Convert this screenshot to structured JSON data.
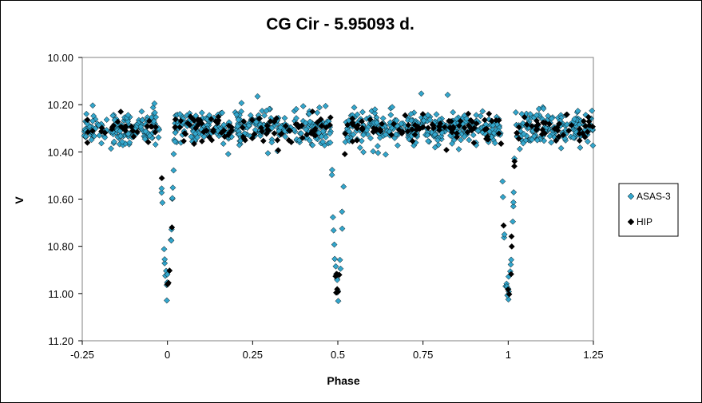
{
  "chart_data": {
    "type": "scatter",
    "title": "CG Cir - 5.95093 d.",
    "xlabel": "Phase",
    "ylabel": "V",
    "xlim": [
      -0.25,
      1.25
    ],
    "ylim": [
      10.0,
      11.2
    ],
    "y_inverted": true,
    "x_ticks": [
      -0.25,
      0,
      0.25,
      0.5,
      0.75,
      1,
      1.25
    ],
    "x_tick_labels": [
      "-0.25",
      "0",
      "0.25",
      "0.5",
      "0.75",
      "1",
      "1.25"
    ],
    "y_ticks": [
      10.0,
      10.2,
      10.4,
      10.6,
      10.8,
      11.0,
      11.2
    ],
    "y_tick_labels": [
      "10.00",
      "10.20",
      "10.40",
      "10.60",
      "10.80",
      "11.00",
      "11.20"
    ],
    "grid": false,
    "legend_position": "right",
    "model": {
      "period_days": 5.95093,
      "baseline_mag": 10.3,
      "eclipses": [
        {
          "phase": 0.0,
          "depth": 0.68,
          "width": 0.022
        },
        {
          "phase": 0.5,
          "depth": 0.68,
          "width": 0.022
        }
      ]
    },
    "series": [
      {
        "name": "ASAS-3",
        "marker": "diamond",
        "color": "#33a6cc",
        "count": 1000,
        "scatter": 0.035,
        "seed": 12345
      },
      {
        "name": "HIP",
        "marker": "diamond",
        "color": "#000000",
        "count": 260,
        "scatter": 0.03,
        "seed": 67890
      }
    ]
  }
}
